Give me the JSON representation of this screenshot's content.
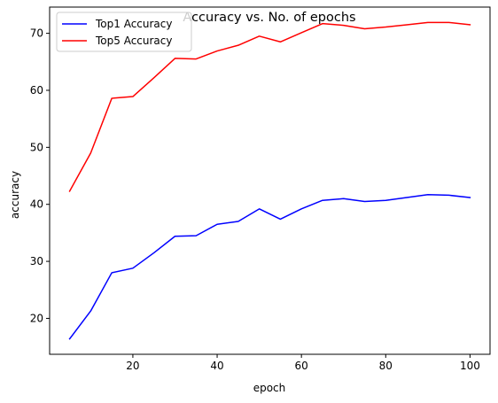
{
  "chart_data": {
    "type": "line",
    "title": "Accuracy vs. No. of epochs",
    "xlabel": "epoch",
    "ylabel": "accuracy",
    "xlim": [
      0.25,
      104.75
    ],
    "ylim": [
      13.7,
      74.6
    ],
    "xticks": [
      20,
      40,
      60,
      80,
      100
    ],
    "yticks": [
      20,
      30,
      40,
      50,
      60,
      70
    ],
    "grid": false,
    "legend_position": "top-left",
    "x": [
      5,
      10,
      15,
      20,
      25,
      30,
      35,
      40,
      45,
      50,
      55,
      60,
      65,
      70,
      75,
      80,
      85,
      90,
      95,
      100
    ],
    "series": [
      {
        "name": "Top1 Accuracy",
        "color": "#0000ff",
        "values": [
          16.4,
          21.3,
          28.0,
          28.8,
          31.5,
          34.4,
          34.5,
          36.5,
          37.0,
          39.2,
          37.4,
          39.2,
          40.7,
          41.0,
          40.5,
          40.7,
          41.2,
          41.7,
          41.6,
          41.2
        ]
      },
      {
        "name": "Top5 Accuracy",
        "color": "#ff0000",
        "values": [
          42.3,
          49.0,
          58.6,
          58.9,
          62.2,
          65.6,
          65.5,
          66.9,
          67.9,
          69.5,
          68.5,
          70.1,
          71.7,
          71.4,
          70.8,
          71.1,
          71.5,
          71.9,
          71.9,
          71.5
        ]
      }
    ]
  }
}
